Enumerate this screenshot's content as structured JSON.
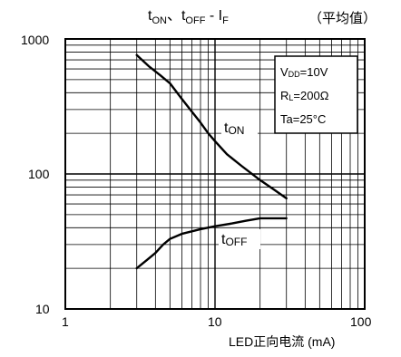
{
  "chart_data": {
    "type": "line",
    "title": {
      "t_main": "t",
      "t_on_sub": "ON",
      "sep": "、",
      "t_off_main": "t",
      "t_off_sub": "OFF",
      "dash": " - I",
      "if_sub": "F"
    },
    "note": "（平均值）",
    "xlabel": "LED正向电流 (mA)",
    "x_scale": "log",
    "y_scale": "log",
    "xlim": [
      1,
      100
    ],
    "ylim": [
      10,
      1000
    ],
    "x_ticks": [
      "1",
      "10",
      "100"
    ],
    "y_ticks": [
      "1000",
      "100",
      "10"
    ],
    "grid": true,
    "conditions": {
      "vdd": {
        "main": "V",
        "sub": "DD",
        "rest": "=10V"
      },
      "rl": {
        "main": "R",
        "sub": "L",
        "rest": "=200Ω"
      },
      "ta": {
        "text": "Ta=25°C"
      }
    },
    "series": [
      {
        "label_main": "t",
        "label_sub": "ON",
        "x": [
          3,
          3.6,
          4.3,
          5,
          6,
          7,
          8,
          9,
          10,
          12,
          15,
          20,
          25,
          30
        ],
        "y": [
          760,
          630,
          540,
          470,
          360,
          290,
          240,
          200,
          175,
          140,
          115,
          90,
          76,
          66
        ]
      },
      {
        "label_main": "t",
        "label_sub": "OFF",
        "x": [
          3,
          3.5,
          4,
          4.5,
          5,
          6,
          8,
          10,
          13,
          16,
          20,
          25,
          30
        ],
        "y": [
          20,
          23,
          26,
          30,
          33,
          36,
          39,
          41,
          43,
          45,
          47,
          47,
          47
        ]
      }
    ]
  }
}
